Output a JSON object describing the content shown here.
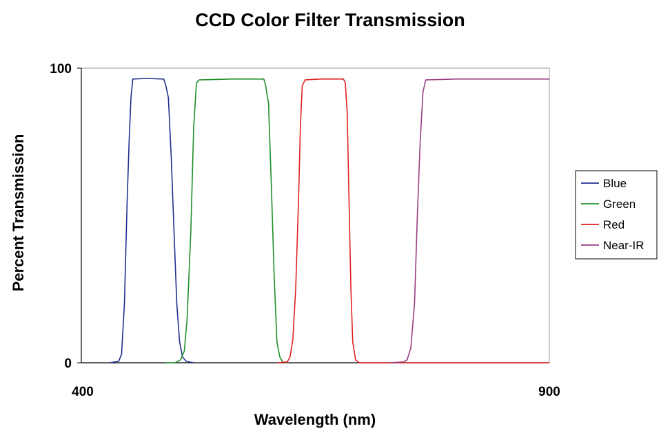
{
  "chart_data": {
    "type": "line",
    "title": "CCD Color Filter Transmission",
    "xlabel": "Wavelength (nm)",
    "ylabel": "Percent Transmission",
    "xlim": [
      400,
      900
    ],
    "ylim": [
      0,
      100
    ],
    "x_ticks": [
      "400",
      "900"
    ],
    "y_ticks": [
      "0",
      "100"
    ],
    "legend_position": "right",
    "grid": false,
    "series": [
      {
        "name": "Blue",
        "color": "#1f2f8f",
        "points": [
          [
            430,
            0
          ],
          [
            440,
            0.5
          ],
          [
            443,
            3
          ],
          [
            446,
            20
          ],
          [
            449,
            55
          ],
          [
            451,
            75
          ],
          [
            453,
            90
          ],
          [
            455,
            96.3
          ],
          [
            470,
            96.5
          ],
          [
            488,
            96.3
          ],
          [
            490,
            94.5
          ],
          [
            493,
            90
          ],
          [
            496,
            70
          ],
          [
            499,
            45
          ],
          [
            502,
            20
          ],
          [
            505,
            7
          ],
          [
            508,
            2
          ],
          [
            512,
            0.5
          ],
          [
            520,
            0
          ]
        ]
      },
      {
        "name": "Green",
        "color": "#1d8f2a",
        "points": [
          [
            490,
            0
          ],
          [
            500,
            0
          ],
          [
            506,
            1
          ],
          [
            510,
            4
          ],
          [
            513,
            15
          ],
          [
            517,
            45
          ],
          [
            520,
            80
          ],
          [
            523,
            95
          ],
          [
            526,
            96
          ],
          [
            560,
            96.3
          ],
          [
            595,
            96.3
          ],
          [
            597,
            94
          ],
          [
            600,
            88
          ],
          [
            603,
            60
          ],
          [
            606,
            30
          ],
          [
            609,
            7
          ],
          [
            612,
            2
          ],
          [
            615,
            0.3
          ],
          [
            620,
            0
          ]
        ]
      },
      {
        "name": "Red",
        "color": "#e02020",
        "points": [
          [
            610,
            0
          ],
          [
            620,
            0.3
          ],
          [
            623,
            2
          ],
          [
            626,
            8
          ],
          [
            629,
            25
          ],
          [
            632,
            55
          ],
          [
            634,
            80
          ],
          [
            636,
            94
          ],
          [
            639,
            96
          ],
          [
            655,
            96.3
          ],
          [
            680,
            96.3
          ],
          [
            682,
            95
          ],
          [
            684,
            85
          ],
          [
            686,
            55
          ],
          [
            688,
            25
          ],
          [
            690,
            7
          ],
          [
            693,
            1
          ],
          [
            697,
            0
          ],
          [
            900,
            0
          ]
        ]
      },
      {
        "name": "Near-IR",
        "color": "#9a3d82",
        "points": [
          [
            730,
            0
          ],
          [
            744,
            0.3
          ],
          [
            748,
            1
          ],
          [
            752,
            5
          ],
          [
            756,
            20
          ],
          [
            759,
            50
          ],
          [
            762,
            75
          ],
          [
            765,
            92
          ],
          [
            768,
            96
          ],
          [
            800,
            96.3
          ],
          [
            900,
            96.3
          ]
        ]
      }
    ]
  }
}
